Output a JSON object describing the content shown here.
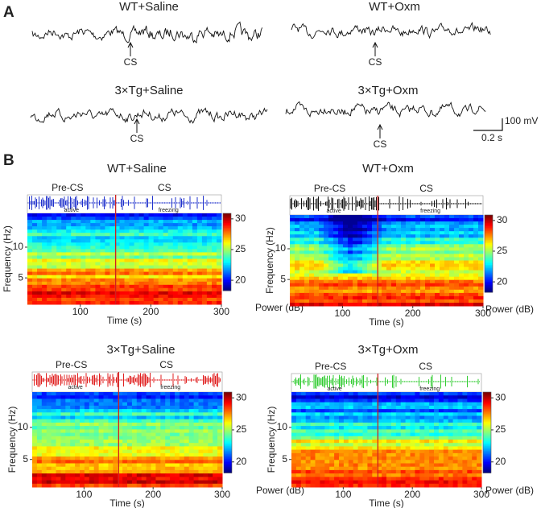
{
  "panel_labels": [
    "A",
    "B"
  ],
  "traces": [
    {
      "title": "WT+Saline",
      "marker": "CS"
    },
    {
      "title": "WT+Oxm",
      "marker": "CS"
    },
    {
      "title": "3×Tg+Saline",
      "marker": "CS"
    },
    {
      "title": "3×Tg+Oxm",
      "marker": "CS"
    }
  ],
  "scale_bar": {
    "amplitude": "100 mV",
    "time": "0.2 s"
  },
  "spectrograms": [
    {
      "title": "WT+Saline",
      "color": "#2233cc",
      "pre_label": "Pre-CS",
      "cs_label": "CS",
      "active_label": "active",
      "freezing_label": "freezing",
      "y_label": "Frequency (Hz)",
      "x_label": "Time (s)",
      "colorbar_label": "Power (dB)",
      "xlim": [
        25,
        300
      ],
      "xticks": [
        100,
        200,
        300
      ],
      "ylim": [
        0.7,
        15.5
      ],
      "yticks": [
        5,
        10
      ],
      "clim": [
        18.3,
        30.9
      ],
      "cticks": [
        20,
        25,
        30
      ]
    },
    {
      "title": "WT+Oxm",
      "color": "#111111",
      "pre_label": "Pre-CS",
      "cs_label": "CS",
      "active_label": "active",
      "freezing_label": "freezing",
      "y_label": "Frequency (Hz)",
      "x_label": "Time (s)",
      "colorbar_label": "Power (dB)",
      "xlim": [
        25,
        300
      ],
      "xticks": [
        100,
        200,
        300
      ],
      "ylim": [
        0.7,
        15.5
      ],
      "yticks": [
        5,
        10
      ],
      "clim": [
        18.3,
        30.9
      ],
      "cticks": [
        20,
        25,
        30
      ]
    },
    {
      "title": "3×Tg+Saline",
      "color": "#e02020",
      "pre_label": "Pre-CS",
      "cs_label": "CS",
      "active_label": "active",
      "freezing_label": "freezing",
      "y_label": "Frequency (Hz)",
      "x_label": "Time (s)",
      "colorbar_label": "Power (dB)",
      "xlim": [
        25,
        300
      ],
      "xticks": [
        100,
        200,
        300
      ],
      "ylim": [
        0.7,
        15.5
      ],
      "yticks": [
        5,
        10
      ],
      "clim": [
        18.3,
        30.9
      ],
      "cticks": [
        20,
        25,
        30
      ]
    },
    {
      "title": "3×Tg+Oxm",
      "color": "#33cc33",
      "pre_label": "Pre-CS",
      "cs_label": "CS",
      "active_label": "active",
      "freezing_label": "freezing",
      "y_label": "Frequency (Hz)",
      "x_label": "Time (s)",
      "colorbar_label": "Power (dB)",
      "xlim": [
        25,
        300
      ],
      "xticks": [
        100,
        200,
        300
      ],
      "ylim": [
        0.7,
        15.5
      ],
      "yticks": [
        5,
        10
      ],
      "clim": [
        18.3,
        30.9
      ],
      "cticks": [
        20,
        25,
        30
      ]
    }
  ]
}
